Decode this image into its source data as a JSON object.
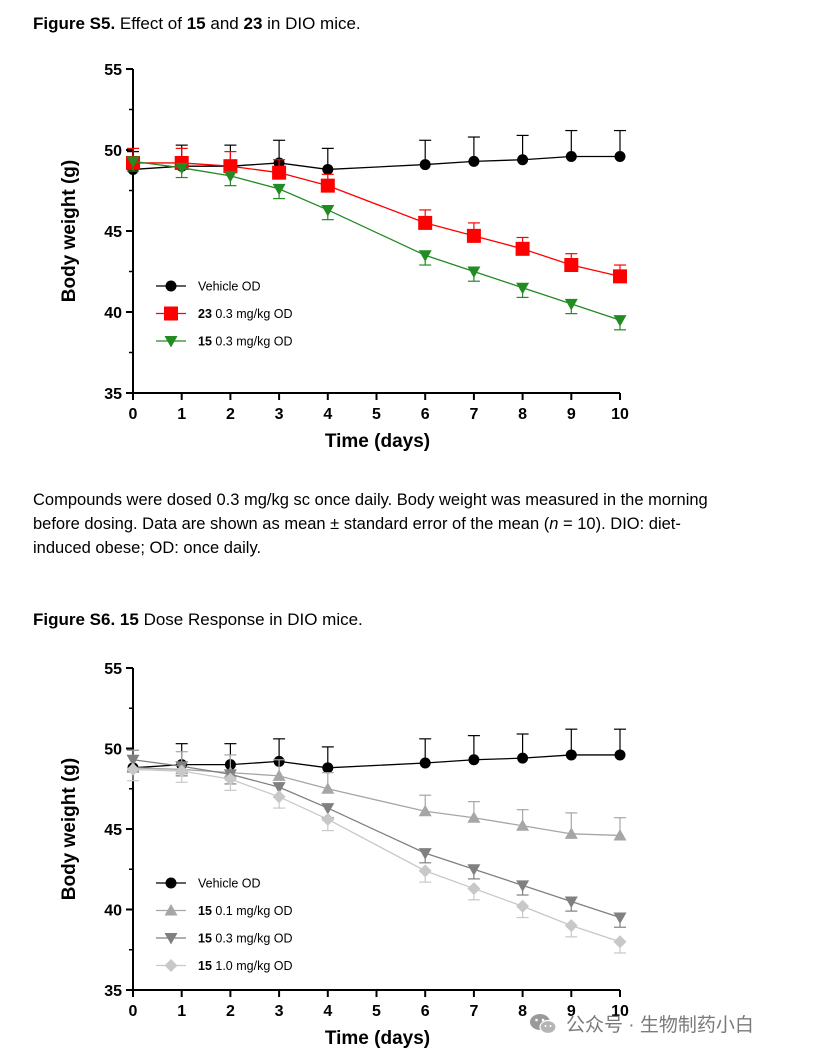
{
  "figure_s5": {
    "label": "Figure S5.",
    "text_a": "Effect of",
    "cmpd_a": "15",
    "text_b": "and",
    "cmpd_b": "23",
    "text_c": "in DIO mice."
  },
  "caption": {
    "line1": "Compounds were dosed 0.3 mg/kg sc once daily. Body weight was measured in the morning",
    "line2_a": "before dosing. Data are shown as mean ± standard error of the mean (",
    "line2_n": "n",
    "line2_b": " = 10). DIO: diet-",
    "line3": "induced obese; OD: once daily."
  },
  "figure_s6": {
    "label": "Figure S6.",
    "cmpd": "15",
    "text": "Dose Response in DIO mice."
  },
  "watermark": {
    "text": "公众号 · 生物制药小白",
    "icon": "wechat-icon"
  },
  "chart_data": [
    {
      "type": "line",
      "xlabel": "Time (days)",
      "ylabel": "Body weight (g)",
      "xlim": [
        0,
        10
      ],
      "ylim": [
        35,
        55
      ],
      "x_ticks": [
        "0",
        "1",
        "2",
        "3",
        "4",
        "5",
        "6",
        "7",
        "8",
        "9",
        "10"
      ],
      "y_ticks": [
        "35",
        "40",
        "45",
        "50",
        "55"
      ],
      "legend_position": "bottom-left",
      "series": [
        {
          "name": "Vehicle OD",
          "bold": "",
          "rest": "Vehicle OD",
          "color": "#000000",
          "marker": "circle",
          "x": [
            0,
            1,
            2,
            3,
            4,
            6,
            7,
            8,
            9,
            10
          ],
          "values": [
            48.8,
            49.0,
            49.0,
            49.2,
            48.8,
            49.1,
            49.3,
            49.4,
            49.6,
            49.6
          ],
          "err": [
            1.1,
            1.3,
            1.3,
            1.4,
            1.3,
            1.5,
            1.5,
            1.5,
            1.6,
            1.6
          ]
        },
        {
          "name": "23 0.3 mg/kg OD",
          "bold": "23",
          "rest": " 0.3 mg/kg OD",
          "color": "#ff0000",
          "marker": "square",
          "x": [
            0,
            1,
            2,
            3,
            4,
            6,
            7,
            8,
            9,
            10
          ],
          "values": [
            49.2,
            49.2,
            49.0,
            48.6,
            47.8,
            45.5,
            44.7,
            43.9,
            42.9,
            42.2
          ],
          "err": [
            0.9,
            0.9,
            0.9,
            0.8,
            0.7,
            0.8,
            0.8,
            0.7,
            0.7,
            0.7
          ]
        },
        {
          "name": "15 0.3 mg/kg OD",
          "bold": "15",
          "rest": " 0.3 mg/kg OD",
          "color": "#228b22",
          "marker": "triangle-down",
          "x": [
            0,
            1,
            2,
            3,
            4,
            6,
            7,
            8,
            9,
            10
          ],
          "values": [
            49.3,
            48.9,
            48.4,
            47.6,
            46.3,
            43.5,
            42.5,
            41.5,
            40.5,
            39.5
          ],
          "err": [
            0.6,
            0.6,
            0.6,
            0.6,
            0.6,
            0.6,
            0.6,
            0.6,
            0.6,
            0.6
          ]
        }
      ]
    },
    {
      "type": "line",
      "xlabel": "Time (days)",
      "ylabel": "Body weight (g)",
      "xlim": [
        0,
        10
      ],
      "ylim": [
        35,
        55
      ],
      "x_ticks": [
        "0",
        "1",
        "2",
        "3",
        "4",
        "5",
        "6",
        "7",
        "8",
        "9",
        "10"
      ],
      "y_ticks": [
        "35",
        "40",
        "45",
        "50",
        "55"
      ],
      "legend_position": "bottom-left",
      "series": [
        {
          "name": "Vehicle OD",
          "bold": "",
          "rest": "Vehicle OD",
          "color": "#000000",
          "marker": "circle",
          "x": [
            0,
            1,
            2,
            3,
            4,
            6,
            7,
            8,
            9,
            10
          ],
          "values": [
            48.8,
            49.0,
            49.0,
            49.2,
            48.8,
            49.1,
            49.3,
            49.4,
            49.6,
            49.6
          ],
          "err": [
            1.1,
            1.3,
            1.3,
            1.4,
            1.3,
            1.5,
            1.5,
            1.5,
            1.6,
            1.6
          ]
        },
        {
          "name": "15 0.1 mg/kg OD",
          "bold": "15",
          "rest": " 0.1 mg/kg OD",
          "color": "#a6a6a6",
          "marker": "triangle-up",
          "x": [
            0,
            1,
            2,
            3,
            4,
            6,
            7,
            8,
            9,
            10
          ],
          "values": [
            48.8,
            48.7,
            48.5,
            48.3,
            47.5,
            46.1,
            45.7,
            45.2,
            44.7,
            44.6
          ],
          "err": [
            1.1,
            1.1,
            1.1,
            1.0,
            1.0,
            1.0,
            1.0,
            1.0,
            1.3,
            1.1
          ]
        },
        {
          "name": "15 0.3 mg/kg OD",
          "bold": "15",
          "rest": " 0.3 mg/kg OD",
          "color": "#808080",
          "marker": "triangle-down",
          "x": [
            0,
            1,
            2,
            3,
            4,
            6,
            7,
            8,
            9,
            10
          ],
          "values": [
            49.3,
            48.9,
            48.4,
            47.6,
            46.3,
            43.5,
            42.5,
            41.5,
            40.5,
            39.5
          ],
          "err": [
            0.7,
            0.6,
            0.6,
            0.6,
            0.6,
            0.6,
            0.6,
            0.6,
            0.6,
            0.6
          ]
        },
        {
          "name": "15 1.0 mg/kg OD",
          "bold": "15",
          "rest": " 1.0 mg/kg OD",
          "color": "#c8c8c8",
          "marker": "diamond",
          "x": [
            0,
            1,
            2,
            3,
            4,
            6,
            7,
            8,
            9,
            10
          ],
          "values": [
            48.7,
            48.6,
            48.1,
            47.0,
            45.6,
            42.4,
            41.3,
            40.2,
            39.0,
            38.0
          ],
          "err": [
            0.7,
            0.7,
            0.7,
            0.7,
            0.7,
            0.7,
            0.7,
            0.7,
            0.7,
            0.7
          ]
        }
      ]
    }
  ]
}
